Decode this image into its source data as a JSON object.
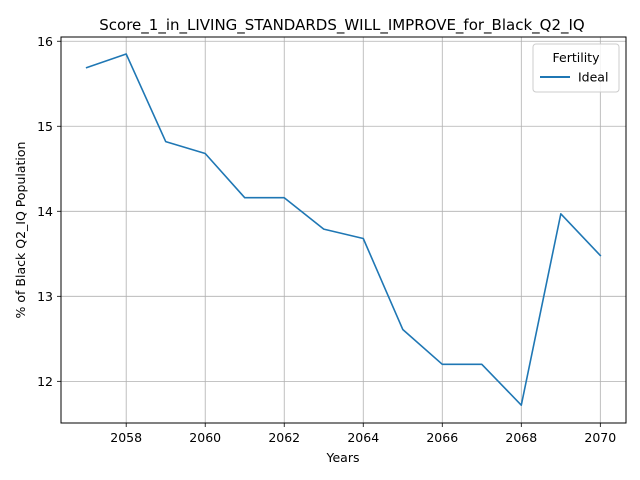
{
  "chart_data": {
    "type": "line",
    "title": "Score_1_in_LIVING_STANDARDS_WILL_IMPROVE_for_Black_Q2_IQ",
    "xlabel": "Years",
    "ylabel": "% of Black Q2_IQ Population",
    "xlim": [
      2056.35,
      2070.65
    ],
    "ylim": [
      11.51,
      16.05
    ],
    "xticks": [
      2058,
      2060,
      2062,
      2064,
      2066,
      2068,
      2070
    ],
    "yticks": [
      12,
      13,
      14,
      15,
      16
    ],
    "grid": true,
    "legend": {
      "title": "Fertility",
      "placement": "top-right"
    },
    "series": [
      {
        "name": "Ideal",
        "color": "#1f77b4",
        "x": [
          2057,
          2058,
          2059,
          2060,
          2061,
          2062,
          2063,
          2064,
          2065,
          2066,
          2067,
          2068,
          2069,
          2070
        ],
        "y": [
          15.69,
          15.85,
          14.82,
          14.68,
          14.16,
          14.16,
          13.79,
          13.68,
          12.61,
          12.2,
          12.2,
          11.72,
          13.97,
          13.48
        ]
      }
    ]
  }
}
